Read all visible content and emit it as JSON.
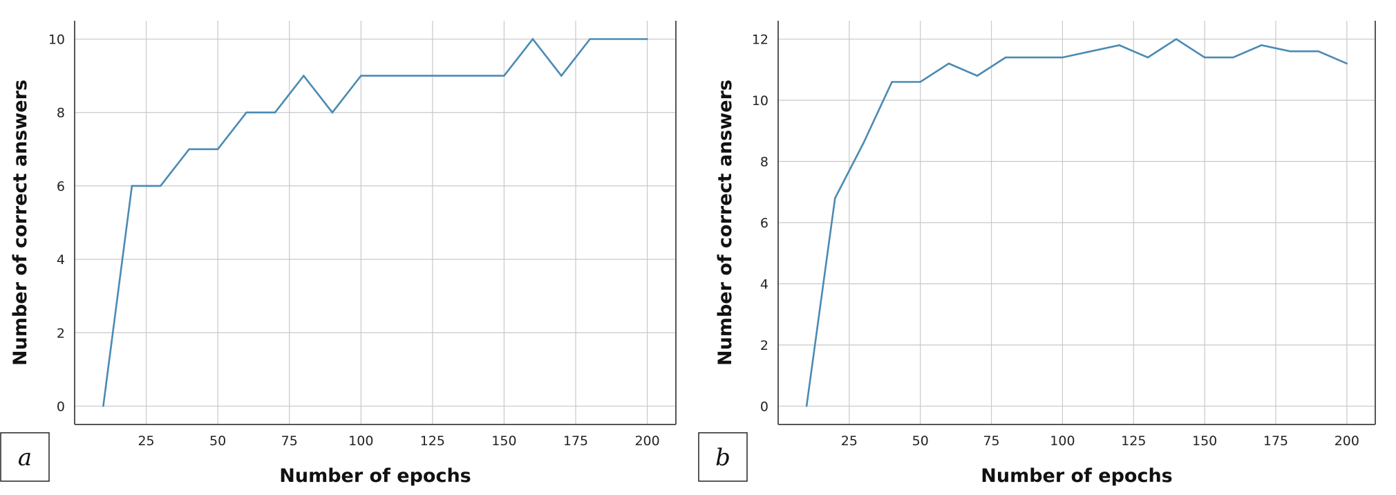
{
  "chart_data": [
    {
      "type": "line",
      "panel_label": "a",
      "xlabel": "Number of epochs",
      "ylabel": "Number of correct answers",
      "xlim": [
        0,
        210
      ],
      "ylim": [
        -0.5,
        10.5
      ],
      "xticks": [
        25,
        50,
        75,
        100,
        125,
        150,
        175,
        200
      ],
      "yticks": [
        0,
        2,
        4,
        6,
        8,
        10
      ],
      "grid": true,
      "line_color": "#4a8ab3",
      "x": [
        10,
        20,
        30,
        40,
        50,
        60,
        70,
        80,
        90,
        100,
        110,
        120,
        130,
        140,
        150,
        160,
        170,
        180,
        190,
        200
      ],
      "y": [
        0,
        6,
        6,
        7,
        7,
        8,
        8,
        9,
        8,
        9,
        9,
        9,
        9,
        9,
        9,
        10,
        9,
        10,
        10,
        10
      ]
    },
    {
      "type": "line",
      "panel_label": "b",
      "xlabel": "Number of epochs",
      "ylabel": "Number of correct answers",
      "xlim": [
        0,
        210
      ],
      "ylim": [
        -0.6,
        12.6
      ],
      "xticks": [
        25,
        50,
        75,
        100,
        125,
        150,
        175,
        200
      ],
      "yticks": [
        0,
        2,
        4,
        6,
        8,
        10,
        12
      ],
      "grid": true,
      "line_color": "#4a8ab3",
      "x": [
        10,
        20,
        30,
        40,
        50,
        60,
        70,
        80,
        90,
        100,
        110,
        120,
        130,
        140,
        150,
        160,
        170,
        180,
        190,
        200
      ],
      "y": [
        0,
        6.8,
        8.6,
        10.6,
        10.6,
        11.2,
        10.8,
        11.4,
        11.4,
        11.4,
        11.6,
        11.8,
        11.4,
        12.0,
        11.4,
        11.4,
        11.8,
        11.6,
        11.6,
        11.2
      ]
    }
  ]
}
